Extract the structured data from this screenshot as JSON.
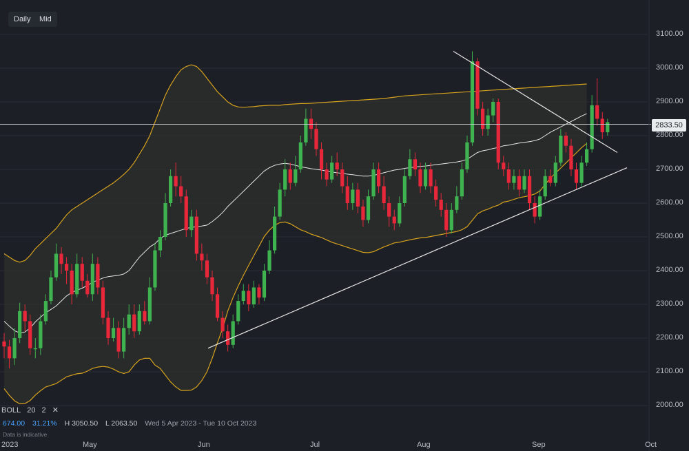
{
  "toolbar": {
    "tabs": [
      "Daily",
      "Mid"
    ]
  },
  "current_price": "2833.50",
  "indicator": {
    "name": "BOLL",
    "period": "20",
    "stddev": "2",
    "close_label": "✕"
  },
  "stats": {
    "change": "674.00",
    "change_pct": "31.21%",
    "high": "H 3050.50",
    "low": "L 2063.50",
    "range": "Wed 5 Apr 2023 - Tue 10 Oct 2023"
  },
  "note": "Data is indicative",
  "colors": {
    "up": "#3fb34f",
    "down": "#e8283a",
    "band": "#d6a21d",
    "mid": "#e6e6e6",
    "bg": "#1c1f26"
  },
  "chart_data": {
    "type": "candlestick",
    "indicator": "Bollinger Bands (20, 2)",
    "ylim": [
      1960,
      3140
    ],
    "y_ticks": [
      "3100.00",
      "3000.00",
      "2900.00",
      "2800.00",
      "2700.00",
      "2600.00",
      "2500.00",
      "2400.00",
      "2300.00",
      "2200.00",
      "2100.00",
      "2000.00"
    ],
    "x_ticks": [
      "2023",
      "May",
      "Jun",
      "Jul",
      "Aug",
      "Sep",
      "Oct"
    ],
    "current_price": 2833.5,
    "candles": [
      [
        2190,
        2175,
        2215,
        2140
      ],
      [
        2175,
        2140,
        2195,
        2110
      ],
      [
        2140,
        2200,
        2230,
        2120
      ],
      [
        2200,
        2280,
        2305,
        2185
      ],
      [
        2280,
        2250,
        2300,
        2220
      ],
      [
        2250,
        2170,
        2270,
        2150
      ],
      [
        2170,
        2170,
        2200,
        2140
      ],
      [
        2170,
        2250,
        2270,
        2150
      ],
      [
        2250,
        2310,
        2330,
        2240
      ],
      [
        2310,
        2380,
        2400,
        2300
      ],
      [
        2380,
        2450,
        2480,
        2370
      ],
      [
        2450,
        2420,
        2470,
        2390
      ],
      [
        2420,
        2400,
        2440,
        2360
      ],
      [
        2400,
        2330,
        2420,
        2300
      ],
      [
        2330,
        2420,
        2450,
        2320
      ],
      [
        2420,
        2370,
        2440,
        2350
      ],
      [
        2370,
        2330,
        2390,
        2320
      ],
      [
        2330,
        2420,
        2450,
        2310
      ],
      [
        2420,
        2350,
        2440,
        2330
      ],
      [
        2350,
        2260,
        2370,
        2240
      ],
      [
        2260,
        2200,
        2280,
        2180
      ],
      [
        2200,
        2230,
        2260,
        2190
      ],
      [
        2230,
        2160,
        2250,
        2140
      ],
      [
        2160,
        2230,
        2260,
        2140
      ],
      [
        2230,
        2270,
        2300,
        2210
      ],
      [
        2270,
        2220,
        2300,
        2200
      ],
      [
        2220,
        2280,
        2300,
        2210
      ],
      [
        2280,
        2250,
        2310,
        2240
      ],
      [
        2250,
        2350,
        2380,
        2240
      ],
      [
        2350,
        2460,
        2480,
        2340
      ],
      [
        2460,
        2500,
        2520,
        2440
      ],
      [
        2500,
        2600,
        2630,
        2490
      ],
      [
        2600,
        2680,
        2700,
        2590
      ],
      [
        2680,
        2650,
        2720,
        2620
      ],
      [
        2650,
        2620,
        2680,
        2600
      ],
      [
        2620,
        2520,
        2640,
        2500
      ],
      [
        2520,
        2560,
        2580,
        2500
      ],
      [
        2560,
        2450,
        2580,
        2430
      ],
      [
        2450,
        2430,
        2480,
        2400
      ],
      [
        2430,
        2380,
        2450,
        2360
      ],
      [
        2380,
        2330,
        2400,
        2310
      ],
      [
        2330,
        2260,
        2350,
        2250
      ],
      [
        2260,
        2220,
        2280,
        2200
      ],
      [
        2220,
        2180,
        2240,
        2160
      ],
      [
        2180,
        2250,
        2270,
        2170
      ],
      [
        2250,
        2310,
        2330,
        2240
      ],
      [
        2310,
        2340,
        2360,
        2300
      ],
      [
        2340,
        2300,
        2360,
        2280
      ],
      [
        2300,
        2350,
        2370,
        2290
      ],
      [
        2350,
        2320,
        2360,
        2300
      ],
      [
        2320,
        2400,
        2420,
        2310
      ],
      [
        2400,
        2460,
        2490,
        2390
      ],
      [
        2460,
        2560,
        2590,
        2450
      ],
      [
        2560,
        2640,
        2660,
        2550
      ],
      [
        2640,
        2700,
        2730,
        2620
      ],
      [
        2700,
        2660,
        2720,
        2640
      ],
      [
        2660,
        2700,
        2740,
        2650
      ],
      [
        2700,
        2780,
        2800,
        2690
      ],
      [
        2780,
        2850,
        2880,
        2770
      ],
      [
        2850,
        2820,
        2880,
        2790
      ],
      [
        2820,
        2760,
        2840,
        2740
      ],
      [
        2760,
        2700,
        2780,
        2670
      ],
      [
        2700,
        2670,
        2720,
        2650
      ],
      [
        2670,
        2720,
        2740,
        2660
      ],
      [
        2720,
        2700,
        2750,
        2680
      ],
      [
        2700,
        2650,
        2720,
        2630
      ],
      [
        2650,
        2600,
        2680,
        2580
      ],
      [
        2600,
        2640,
        2660,
        2580
      ],
      [
        2640,
        2590,
        2660,
        2570
      ],
      [
        2590,
        2550,
        2610,
        2530
      ],
      [
        2550,
        2620,
        2640,
        2540
      ],
      [
        2620,
        2700,
        2720,
        2610
      ],
      [
        2700,
        2650,
        2720,
        2630
      ],
      [
        2650,
        2600,
        2680,
        2580
      ],
      [
        2600,
        2560,
        2620,
        2530
      ],
      [
        2560,
        2540,
        2580,
        2520
      ],
      [
        2540,
        2600,
        2620,
        2530
      ],
      [
        2600,
        2680,
        2700,
        2590
      ],
      [
        2680,
        2730,
        2760,
        2670
      ],
      [
        2730,
        2700,
        2750,
        2680
      ],
      [
        2700,
        2650,
        2720,
        2630
      ],
      [
        2650,
        2700,
        2720,
        2640
      ],
      [
        2700,
        2650,
        2720,
        2630
      ],
      [
        2650,
        2610,
        2670,
        2590
      ],
      [
        2610,
        2580,
        2630,
        2560
      ],
      [
        2580,
        2520,
        2600,
        2500
      ],
      [
        2520,
        2580,
        2600,
        2510
      ],
      [
        2580,
        2620,
        2650,
        2570
      ],
      [
        2620,
        2700,
        2720,
        2610
      ],
      [
        2700,
        2780,
        2800,
        2690
      ],
      [
        2780,
        3020,
        3050,
        2770
      ],
      [
        3020,
        2880,
        3030,
        2860
      ],
      [
        2880,
        2820,
        2900,
        2800
      ],
      [
        2820,
        2860,
        2880,
        2800
      ],
      [
        2860,
        2900,
        2910,
        2840
      ],
      [
        2900,
        2720,
        2910,
        2700
      ],
      [
        2720,
        2700,
        2740,
        2680
      ],
      [
        2700,
        2660,
        2720,
        2640
      ],
      [
        2660,
        2680,
        2700,
        2640
      ],
      [
        2680,
        2640,
        2700,
        2620
      ],
      [
        2640,
        2680,
        2700,
        2630
      ],
      [
        2680,
        2600,
        2700,
        2580
      ],
      [
        2600,
        2560,
        2620,
        2540
      ],
      [
        2560,
        2620,
        2640,
        2550
      ],
      [
        2620,
        2680,
        2700,
        2610
      ],
      [
        2680,
        2660,
        2700,
        2650
      ],
      [
        2660,
        2720,
        2740,
        2650
      ],
      [
        2720,
        2800,
        2820,
        2710
      ],
      [
        2800,
        2770,
        2810,
        2750
      ],
      [
        2770,
        2700,
        2790,
        2680
      ],
      [
        2700,
        2660,
        2720,
        2640
      ],
      [
        2660,
        2720,
        2740,
        2650
      ],
      [
        2720,
        2760,
        2780,
        2710
      ],
      [
        2760,
        2890,
        2920,
        2750
      ],
      [
        2890,
        2850,
        2970,
        2830
      ],
      [
        2850,
        2810,
        2870,
        2790
      ],
      [
        2810,
        2840,
        2850,
        2800
      ]
    ],
    "bollinger_mid": [
      2250,
      2235,
      2222,
      2215,
      2218,
      2230,
      2248,
      2262,
      2275,
      2285,
      2295,
      2310,
      2325,
      2335,
      2342,
      2348,
      2356,
      2365,
      2372,
      2378,
      2382,
      2384,
      2386,
      2390,
      2400,
      2420,
      2440,
      2455,
      2470,
      2480,
      2495,
      2505,
      2510,
      2515,
      2520,
      2525,
      2528,
      2530,
      2532,
      2535,
      2545,
      2558,
      2572,
      2590,
      2605,
      2620,
      2635,
      2650,
      2665,
      2680,
      2695,
      2705,
      2712,
      2716,
      2718,
      2716,
      2712,
      2708,
      2705,
      2702,
      2700,
      2698,
      2695,
      2692,
      2690,
      2688,
      2686,
      2684,
      2682,
      2680,
      2680,
      2682,
      2686,
      2690,
      2694,
      2698,
      2700,
      2703,
      2705,
      2707,
      2709,
      2710,
      2712,
      2714,
      2716,
      2718,
      2720,
      2722,
      2725,
      2730,
      2740,
      2750,
      2755,
      2758,
      2762,
      2765,
      2770,
      2772,
      2775,
      2778,
      2780,
      2782,
      2785,
      2790,
      2800,
      2810,
      2818,
      2826,
      2834,
      2842,
      2850,
      2858,
      2865
    ],
    "bollinger_upper": [
      2450,
      2440,
      2430,
      2425,
      2430,
      2445,
      2465,
      2480,
      2495,
      2510,
      2525,
      2545,
      2565,
      2580,
      2590,
      2600,
      2610,
      2620,
      2630,
      2640,
      2650,
      2660,
      2672,
      2685,
      2700,
      2720,
      2745,
      2770,
      2800,
      2840,
      2880,
      2920,
      2950,
      2975,
      2995,
      3005,
      3010,
      3005,
      2990,
      2970,
      2950,
      2930,
      2915,
      2900,
      2890,
      2885,
      2884,
      2885,
      2886,
      2888,
      2889,
      2890,
      2890,
      2890,
      2892,
      2893,
      2894,
      2895,
      2895,
      2896,
      2897,
      2898,
      2899,
      2900,
      2901,
      2902,
      2903,
      2904,
      2905,
      2906,
      2907,
      2908,
      2909,
      2910,
      2912,
      2914,
      2916,
      2918,
      2919,
      2920,
      2921,
      2922,
      2923,
      2924,
      2925,
      2926,
      2927,
      2928,
      2929,
      2930,
      2931,
      2932,
      2933,
      2934,
      2935,
      2936,
      2937,
      2938,
      2939,
      2940,
      2941,
      2942,
      2943,
      2944,
      2945,
      2946,
      2947,
      2948,
      2949,
      2950,
      2951,
      2952,
      2953
    ],
    "bollinger_lower": [
      2050,
      2030,
      2014,
      2005,
      2006,
      2015,
      2031,
      2044,
      2055,
      2060,
      2065,
      2075,
      2085,
      2090,
      2094,
      2096,
      2102,
      2110,
      2114,
      2116,
      2114,
      2108,
      2100,
      2095,
      2100,
      2120,
      2135,
      2140,
      2140,
      2120,
      2110,
      2090,
      2070,
      2055,
      2045,
      2045,
      2046,
      2055,
      2074,
      2100,
      2140,
      2186,
      2229,
      2280,
      2320,
      2355,
      2386,
      2415,
      2444,
      2472,
      2501,
      2520,
      2534,
      2542,
      2544,
      2539,
      2530,
      2521,
      2515,
      2508,
      2503,
      2498,
      2491,
      2484,
      2479,
      2474,
      2469,
      2464,
      2459,
      2454,
      2453,
      2456,
      2463,
      2470,
      2476,
      2482,
      2484,
      2488,
      2491,
      2494,
      2497,
      2498,
      2501,
      2504,
      2507,
      2510,
      2513,
      2516,
      2521,
      2530,
      2549,
      2568,
      2577,
      2582,
      2589,
      2594,
      2603,
      2606,
      2611,
      2616,
      2619,
      2622,
      2627,
      2636,
      2655,
      2674,
      2689,
      2704,
      2719,
      2734,
      2749,
      2764,
      2777
    ],
    "trendlines": [
      {
        "from": [
          "Jun 1",
          2170
        ],
        "to": [
          "Sep 30",
          2705
        ]
      },
      {
        "from": [
          "Aug 1",
          3050
        ],
        "to": [
          "Sep 25",
          2750
        ]
      }
    ]
  }
}
